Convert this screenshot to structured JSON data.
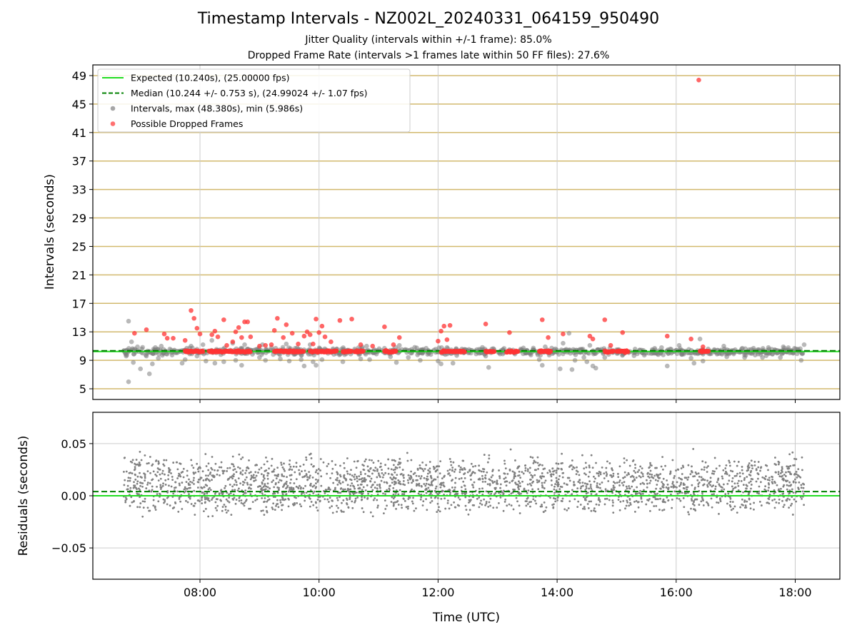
{
  "title": "Timestamp Intervals - NZ002L_20240331_064159_950490",
  "subtitle_1": "Jitter Quality (intervals within +/-1 frame): 85.0%",
  "subtitle_2": "Dropped Frame Rate (intervals >1 frames late within 50 FF files): 27.6%",
  "colors": {
    "expected": "#22dd22",
    "median": "#008000",
    "intervals": "#808080",
    "dropped": "#ff3333",
    "hgrid": "#d2b96e",
    "vgrid": "#cccccc"
  },
  "chart_data": [
    {
      "type": "scatter",
      "ylabel": "Intervals (seconds)",
      "y_ticks": [
        5,
        9,
        13,
        17,
        21,
        25,
        29,
        33,
        37,
        41,
        45,
        49
      ],
      "ylim": [
        3.5,
        50.5
      ],
      "xlim_hours": [
        6.2,
        18.75
      ],
      "x_ticks": [
        "08:00",
        "10:00",
        "12:00",
        "14:00",
        "16:00",
        "18:00"
      ],
      "x_tick_hours": [
        8,
        10,
        12,
        14,
        16,
        18
      ],
      "grid": "on",
      "legend_position": "upper-left",
      "lines": [
        {
          "name": "Expected (10.240s), (25.00000 fps)",
          "y": 10.24,
          "style": "solid"
        },
        {
          "name": "Median (10.244 +/- 0.753 s), (24.99024 +/- 1.07 fps)",
          "y": 10.244,
          "style": "dashed"
        }
      ],
      "series": [
        {
          "name": "Intervals, max (48.380s), min (5.986s)",
          "points": [
            [
              6.72,
              10.3
            ],
            [
              6.76,
              9.6
            ],
            [
              6.8,
              14.5
            ],
            [
              6.8,
              5.99
            ],
            [
              6.85,
              11.6
            ],
            [
              6.88,
              8.7
            ],
            [
              6.95,
              10.9
            ],
            [
              7.0,
              7.8
            ],
            [
              7.1,
              9.6
            ],
            [
              7.15,
              7.1
            ],
            [
              7.2,
              8.5
            ],
            [
              7.25,
              10.8
            ],
            [
              7.3,
              9.3
            ],
            [
              7.35,
              11.0
            ],
            [
              7.7,
              8.6
            ],
            [
              7.75,
              9.1
            ],
            [
              7.85,
              11.0
            ],
            [
              7.95,
              9.6
            ],
            [
              8.05,
              11.2
            ],
            [
              8.1,
              8.9
            ],
            [
              8.2,
              11.8
            ],
            [
              8.25,
              8.6
            ],
            [
              8.35,
              9.8
            ],
            [
              8.4,
              8.8
            ],
            [
              8.55,
              11.4
            ],
            [
              8.6,
              9.0
            ],
            [
              8.7,
              8.3
            ],
            [
              8.75,
              11.2
            ],
            [
              9.0,
              9.4
            ],
            [
              9.05,
              11.2
            ],
            [
              9.1,
              9.0
            ],
            [
              9.2,
              10.8
            ],
            [
              9.35,
              9.2
            ],
            [
              9.45,
              11.3
            ],
            [
              9.5,
              8.9
            ],
            [
              9.6,
              10.7
            ],
            [
              9.7,
              9.1
            ],
            [
              9.75,
              8.2
            ],
            [
              9.85,
              11.2
            ],
            [
              9.9,
              8.8
            ],
            [
              9.95,
              8.3
            ],
            [
              10.05,
              9.1
            ],
            [
              10.3,
              10.6
            ],
            [
              10.4,
              8.8
            ],
            [
              10.6,
              10.6
            ],
            [
              10.7,
              9.2
            ],
            [
              10.8,
              11.0
            ],
            [
              10.85,
              9.1
            ],
            [
              11.1,
              10.7
            ],
            [
              11.2,
              9.5
            ],
            [
              11.3,
              8.7
            ],
            [
              11.35,
              11.1
            ],
            [
              11.5,
              9.4
            ],
            [
              11.7,
              9.0
            ],
            [
              11.8,
              10.7
            ],
            [
              12.0,
              8.9
            ],
            [
              12.05,
              8.5
            ],
            [
              12.15,
              10.8
            ],
            [
              12.25,
              8.6
            ],
            [
              12.4,
              10.6
            ],
            [
              12.55,
              10.4
            ],
            [
              12.8,
              9.6
            ],
            [
              12.85,
              8.0
            ],
            [
              13.2,
              10.5
            ],
            [
              13.4,
              10.4
            ],
            [
              13.6,
              10.5
            ],
            [
              13.7,
              9.1
            ],
            [
              13.75,
              8.3
            ],
            [
              13.8,
              10.9
            ],
            [
              13.9,
              10.3
            ],
            [
              14.05,
              7.8
            ],
            [
              14.1,
              11.4
            ],
            [
              14.2,
              12.8
            ],
            [
              14.25,
              7.7
            ],
            [
              14.3,
              9.0
            ],
            [
              14.45,
              9.4
            ],
            [
              14.5,
              8.8
            ],
            [
              14.55,
              11.1
            ],
            [
              14.6,
              8.2
            ],
            [
              14.65,
              7.9
            ],
            [
              14.8,
              9.4
            ],
            [
              15.0,
              10.5
            ],
            [
              15.1,
              9.8
            ],
            [
              15.45,
              10.4
            ],
            [
              15.7,
              9.8
            ],
            [
              15.85,
              8.2
            ],
            [
              15.9,
              10.6
            ],
            [
              16.05,
              11.1
            ],
            [
              16.1,
              10.3
            ],
            [
              16.25,
              9.3
            ],
            [
              16.3,
              8.6
            ],
            [
              16.4,
              12.0
            ],
            [
              16.45,
              8.9
            ],
            [
              16.7,
              10.4
            ],
            [
              16.8,
              11.0
            ],
            [
              16.85,
              9.5
            ],
            [
              17.1,
              10.6
            ],
            [
              17.15,
              9.4
            ],
            [
              17.3,
              10.7
            ],
            [
              17.45,
              9.4
            ],
            [
              17.55,
              10.8
            ],
            [
              17.75,
              9.4
            ],
            [
              17.8,
              10.9
            ],
            [
              18.05,
              10.3
            ],
            [
              18.1,
              9.0
            ],
            [
              18.15,
              11.2
            ]
          ]
        },
        {
          "name": "Possible Dropped Frames",
          "points": [
            [
              6.9,
              12.8
            ],
            [
              7.1,
              13.3
            ],
            [
              7.4,
              12.7
            ],
            [
              7.45,
              12.1
            ],
            [
              7.55,
              12.1
            ],
            [
              7.75,
              11.8
            ],
            [
              7.85,
              16.0
            ],
            [
              7.9,
              14.9
            ],
            [
              7.95,
              13.5
            ],
            [
              8.0,
              12.7
            ],
            [
              8.2,
              12.6
            ],
            [
              8.25,
              13.1
            ],
            [
              8.3,
              12.3
            ],
            [
              8.4,
              14.7
            ],
            [
              8.45,
              11.1
            ],
            [
              8.55,
              11.6
            ],
            [
              8.6,
              13.0
            ],
            [
              8.65,
              13.6
            ],
            [
              8.7,
              12.2
            ],
            [
              8.75,
              14.4
            ],
            [
              8.8,
              14.4
            ],
            [
              8.85,
              12.3
            ],
            [
              9.0,
              11.0
            ],
            [
              9.1,
              11.1
            ],
            [
              9.2,
              11.2
            ],
            [
              9.25,
              13.2
            ],
            [
              9.3,
              14.9
            ],
            [
              9.4,
              12.2
            ],
            [
              9.45,
              14.0
            ],
            [
              9.55,
              12.8
            ],
            [
              9.65,
              11.3
            ],
            [
              9.75,
              12.4
            ],
            [
              9.8,
              13.0
            ],
            [
              9.85,
              12.6
            ],
            [
              9.9,
              11.3
            ],
            [
              9.95,
              14.8
            ],
            [
              10.0,
              12.9
            ],
            [
              10.05,
              13.8
            ],
            [
              10.1,
              12.3
            ],
            [
              10.2,
              11.6
            ],
            [
              10.35,
              14.6
            ],
            [
              10.55,
              14.8
            ],
            [
              10.7,
              11.2
            ],
            [
              10.9,
              11.0
            ],
            [
              11.1,
              13.7
            ],
            [
              11.25,
              11.2
            ],
            [
              11.35,
              12.2
            ],
            [
              12.0,
              11.7
            ],
            [
              12.05,
              13.1
            ],
            [
              12.1,
              13.8
            ],
            [
              12.15,
              11.9
            ],
            [
              12.2,
              13.9
            ],
            [
              12.8,
              14.1
            ],
            [
              13.2,
              12.9
            ],
            [
              13.75,
              14.7
            ],
            [
              13.85,
              12.2
            ],
            [
              14.1,
              12.7
            ],
            [
              14.55,
              12.4
            ],
            [
              14.6,
              12.0
            ],
            [
              14.8,
              14.7
            ],
            [
              14.9,
              11.1
            ],
            [
              15.1,
              12.9
            ],
            [
              15.85,
              12.4
            ],
            [
              16.25,
              12.0
            ],
            [
              16.45,
              10.9
            ],
            [
              16.38,
              48.38
            ]
          ],
          "dense_bands_hours": [
            [
              7.75,
              8.05
            ],
            [
              8.15,
              8.85
            ],
            [
              9.25,
              9.75
            ],
            [
              9.85,
              10.3
            ],
            [
              10.4,
              10.55
            ],
            [
              10.6,
              10.75
            ],
            [
              11.1,
              11.3
            ],
            [
              12.05,
              12.45
            ],
            [
              12.8,
              12.95
            ],
            [
              13.15,
              13.35
            ],
            [
              13.7,
              13.9
            ],
            [
              14.8,
              14.95
            ],
            [
              15.0,
              15.2
            ],
            [
              16.4,
              16.55
            ]
          ],
          "dense_band_value": 10.24
        }
      ]
    },
    {
      "type": "scatter",
      "ylabel": "Residuals (seconds)",
      "xlabel": "Time (UTC)",
      "y_ticks": [
        "0.05",
        "0.00",
        "−0.05"
      ],
      "y_tick_values": [
        0.05,
        0.0,
        -0.05
      ],
      "ylim": [
        -0.08,
        0.08
      ],
      "xlim_hours": [
        6.2,
        18.75
      ],
      "x_ticks": [
        "08:00",
        "10:00",
        "12:00",
        "14:00",
        "16:00",
        "18:00"
      ],
      "x_tick_hours": [
        8,
        10,
        12,
        14,
        16,
        18
      ],
      "grid": "on",
      "lines": [
        {
          "y": 0.0,
          "style": "solid"
        },
        {
          "y": 0.004,
          "style": "dashed"
        }
      ],
      "series": [
        {
          "points": "approx. 2500 residual points between 06:43 and 18:10, mostly within ±0.05 s, clustered around +0.02 s and 0.00 s",
          "x_range_hours": [
            6.72,
            18.15
          ],
          "sample_count": 2500
        }
      ]
    }
  ]
}
